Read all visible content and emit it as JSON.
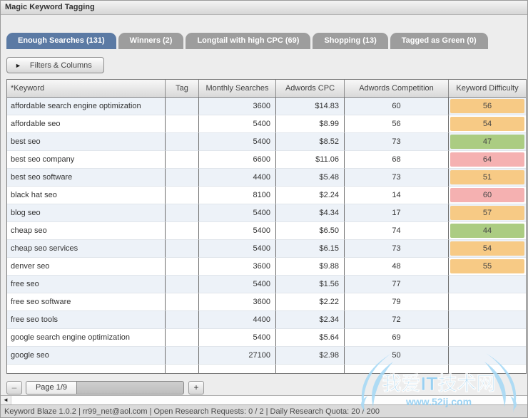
{
  "window": {
    "title": "Magic Keyword Tagging"
  },
  "tabs": [
    {
      "id": "enough-searches",
      "label": "Enough Searches (131)",
      "active": true
    },
    {
      "id": "winners",
      "label": "Winners (2)",
      "active": false
    },
    {
      "id": "longtail-high-cpc",
      "label": "Longtail with high CPC (69)",
      "active": false
    },
    {
      "id": "shopping",
      "label": "Shopping (13)",
      "active": false
    },
    {
      "id": "tagged-green",
      "label": "Tagged as Green (0)",
      "active": false
    }
  ],
  "toolbar": {
    "filters_button": "Filters & Columns"
  },
  "icons": {
    "filters_triangle": "►",
    "scroll_left": "◄"
  },
  "table": {
    "columns": [
      "*Keyword",
      "Tag",
      "Monthly Searches",
      "Adwords CPC",
      "Adwords Competition",
      "Keyword Difficulty"
    ],
    "rows": [
      {
        "keyword": "affordable search engine optimization",
        "tag": "",
        "monthly_searches": "3600",
        "adwords_cpc": "$14.83",
        "adwords_competition": "60",
        "keyword_difficulty": "56",
        "difficulty_color": "orange"
      },
      {
        "keyword": "affordable seo",
        "tag": "",
        "monthly_searches": "5400",
        "adwords_cpc": "$8.99",
        "adwords_competition": "56",
        "keyword_difficulty": "54",
        "difficulty_color": "orange"
      },
      {
        "keyword": "best seo",
        "tag": "",
        "monthly_searches": "5400",
        "adwords_cpc": "$8.52",
        "adwords_competition": "73",
        "keyword_difficulty": "47",
        "difficulty_color": "green"
      },
      {
        "keyword": "best seo company",
        "tag": "",
        "monthly_searches": "6600",
        "adwords_cpc": "$11.06",
        "adwords_competition": "68",
        "keyword_difficulty": "64",
        "difficulty_color": "red"
      },
      {
        "keyword": "best seo software",
        "tag": "",
        "monthly_searches": "4400",
        "adwords_cpc": "$5.48",
        "adwords_competition": "73",
        "keyword_difficulty": "51",
        "difficulty_color": "orange"
      },
      {
        "keyword": "black hat seo",
        "tag": "",
        "monthly_searches": "8100",
        "adwords_cpc": "$2.24",
        "adwords_competition": "14",
        "keyword_difficulty": "60",
        "difficulty_color": "red"
      },
      {
        "keyword": "blog seo",
        "tag": "",
        "monthly_searches": "5400",
        "adwords_cpc": "$4.34",
        "adwords_competition": "17",
        "keyword_difficulty": "57",
        "difficulty_color": "orange"
      },
      {
        "keyword": "cheap seo",
        "tag": "",
        "monthly_searches": "5400",
        "adwords_cpc": "$6.50",
        "adwords_competition": "74",
        "keyword_difficulty": "44",
        "difficulty_color": "green"
      },
      {
        "keyword": "cheap seo services",
        "tag": "",
        "monthly_searches": "5400",
        "adwords_cpc": "$6.15",
        "adwords_competition": "73",
        "keyword_difficulty": "54",
        "difficulty_color": "orange"
      },
      {
        "keyword": "denver seo",
        "tag": "",
        "monthly_searches": "3600",
        "adwords_cpc": "$9.88",
        "adwords_competition": "48",
        "keyword_difficulty": "55",
        "difficulty_color": "orange"
      },
      {
        "keyword": "free seo",
        "tag": "",
        "monthly_searches": "5400",
        "adwords_cpc": "$1.56",
        "adwords_competition": "77",
        "keyword_difficulty": "",
        "difficulty_color": ""
      },
      {
        "keyword": "free seo software",
        "tag": "",
        "monthly_searches": "3600",
        "adwords_cpc": "$2.22",
        "adwords_competition": "79",
        "keyword_difficulty": "",
        "difficulty_color": ""
      },
      {
        "keyword": "free seo tools",
        "tag": "",
        "monthly_searches": "4400",
        "adwords_cpc": "$2.34",
        "adwords_competition": "72",
        "keyword_difficulty": "",
        "difficulty_color": ""
      },
      {
        "keyword": "google search engine optimization",
        "tag": "",
        "monthly_searches": "5400",
        "adwords_cpc": "$5.64",
        "adwords_competition": "69",
        "keyword_difficulty": "",
        "difficulty_color": ""
      },
      {
        "keyword": "google seo",
        "tag": "",
        "monthly_searches": "27100",
        "adwords_cpc": "$2.98",
        "adwords_competition": "50",
        "keyword_difficulty": "",
        "difficulty_color": ""
      }
    ]
  },
  "pagination": {
    "minus_label": "–",
    "page_label": "Page 1/9",
    "plus_label": "+"
  },
  "status_bar": {
    "text": "Keyword Blaze 1.0.2 | rr99_net@aol.com | Open Research Requests: 0 / 2 | Daily Research Quota: 20 / 200"
  },
  "watermark": {
    "title": "我爱IT技术网",
    "url": "www.52ij.com"
  },
  "colors": {
    "active_tab": "#5b7aa4",
    "inactive_tab": "#9d9d9d",
    "difficulty_orange": "#f7ca85",
    "difficulty_green": "#abcc82",
    "difficulty_red": "#f5b1b1",
    "watermark_blue": "#8ecdf2"
  }
}
